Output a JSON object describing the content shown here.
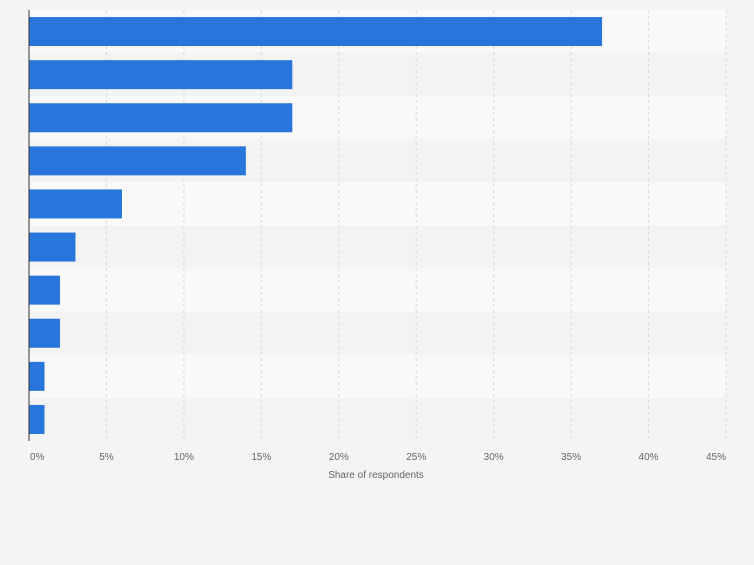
{
  "chart_data": {
    "type": "bar",
    "orientation": "horizontal",
    "categories": [
      "",
      "",
      "",
      "",
      "",
      "",
      "",
      "",
      "",
      ""
    ],
    "values": [
      37,
      17,
      17,
      14,
      6,
      3,
      2,
      2,
      1,
      1
    ],
    "title": "",
    "xlabel": "Share of respondents",
    "ylabel": "",
    "xlim": [
      0,
      45
    ],
    "xticks": [
      "0%",
      "5%",
      "10%",
      "15%",
      "20%",
      "25%",
      "30%",
      "35%",
      "40%",
      "45%"
    ],
    "grid": true,
    "legend": "none",
    "colors": {
      "bar": "#2875dc",
      "band_light": "#f9f9f9",
      "band_dark": "#f3f3f3",
      "background": "#f4f4f4",
      "grid": "#d9d9d9",
      "axis": "#333333",
      "tick_text": "#666666"
    }
  }
}
